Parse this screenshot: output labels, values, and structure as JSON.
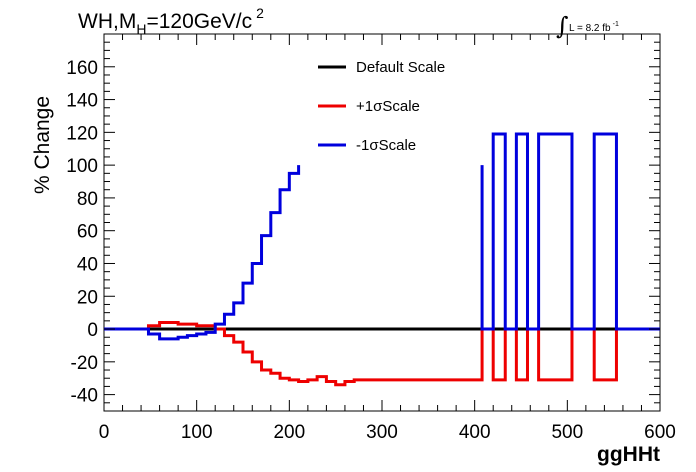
{
  "chart_data": {
    "type": "line",
    "title_main": "WH,M",
    "title_sub": "H",
    "title_rest": "=120GeV/c",
    "title_sup": "2",
    "lumi_main": "L = 8.2 fb",
    "lumi_sup": "-1",
    "xlabel": "ggHHt",
    "ylabel": "% Change",
    "xlim": [
      0,
      600
    ],
    "ylim": [
      -50,
      180
    ],
    "x_ticks": [
      0,
      100,
      200,
      300,
      400,
      500,
      600
    ],
    "y_ticks": [
      -40,
      -20,
      0,
      20,
      40,
      60,
      80,
      100,
      120,
      140,
      160
    ],
    "legend_position": "top-center",
    "grid": false,
    "series": [
      {
        "name": "Default Scale",
        "color": "#000000",
        "points": [
          [
            0,
            0
          ],
          [
            600,
            0
          ]
        ]
      },
      {
        "name": "+1σScale",
        "color": "#ee0000",
        "points": [
          [
            0,
            0
          ],
          [
            48,
            0
          ],
          [
            48,
            2
          ],
          [
            60,
            2
          ],
          [
            60,
            4
          ],
          [
            70,
            4
          ],
          [
            70,
            4
          ],
          [
            80,
            4
          ],
          [
            80,
            3
          ],
          [
            90,
            3
          ],
          [
            90,
            3
          ],
          [
            100,
            3
          ],
          [
            100,
            2
          ],
          [
            110,
            2
          ],
          [
            110,
            2
          ],
          [
            120,
            2
          ],
          [
            120,
            0
          ],
          [
            130,
            0
          ],
          [
            130,
            -4
          ],
          [
            140,
            -4
          ],
          [
            140,
            -8
          ],
          [
            150,
            -8
          ],
          [
            150,
            -14
          ],
          [
            160,
            -14
          ],
          [
            160,
            -20
          ],
          [
            170,
            -20
          ],
          [
            170,
            -25
          ],
          [
            180,
            -25
          ],
          [
            180,
            -27
          ],
          [
            190,
            -27
          ],
          [
            190,
            -30
          ],
          [
            200,
            -30
          ],
          [
            200,
            -31
          ],
          [
            210,
            -31
          ],
          [
            210,
            -32
          ],
          [
            220,
            -32
          ],
          [
            220,
            -31
          ],
          [
            230,
            -31
          ],
          [
            230,
            -29
          ],
          [
            240,
            -29
          ],
          [
            240,
            -32
          ],
          [
            250,
            -32
          ],
          [
            250,
            -34
          ],
          [
            260,
            -34
          ],
          [
            260,
            -32
          ],
          [
            270,
            -32
          ],
          [
            270,
            -31
          ],
          [
            408,
            -31
          ],
          [
            408,
            0
          ],
          [
            420,
            0
          ],
          [
            420,
            -31
          ],
          [
            433,
            -31
          ],
          [
            433,
            0
          ],
          [
            445,
            0
          ],
          [
            445,
            -31
          ],
          [
            457,
            -31
          ],
          [
            457,
            0
          ],
          [
            469,
            0
          ],
          [
            469,
            -31
          ],
          [
            505,
            -31
          ],
          [
            505,
            0
          ],
          [
            529,
            0
          ],
          [
            529,
            -31
          ],
          [
            553,
            -31
          ],
          [
            553,
            0
          ],
          [
            600,
            0
          ]
        ]
      },
      {
        "name": "-1σScale",
        "color": "#0000dd",
        "points": [
          [
            0,
            0
          ],
          [
            48,
            0
          ],
          [
            48,
            -3
          ],
          [
            60,
            -3
          ],
          [
            60,
            -6
          ],
          [
            70,
            -6
          ],
          [
            70,
            -6
          ],
          [
            80,
            -6
          ],
          [
            80,
            -5
          ],
          [
            90,
            -5
          ],
          [
            90,
            -4
          ],
          [
            100,
            -4
          ],
          [
            100,
            -3
          ],
          [
            110,
            -3
          ],
          [
            110,
            -2
          ],
          [
            120,
            -2
          ],
          [
            120,
            3
          ],
          [
            130,
            3
          ],
          [
            130,
            9
          ],
          [
            140,
            9
          ],
          [
            140,
            16
          ],
          [
            150,
            16
          ],
          [
            150,
            28
          ],
          [
            160,
            28
          ],
          [
            160,
            40
          ],
          [
            170,
            40
          ],
          [
            170,
            57
          ],
          [
            180,
            57
          ],
          [
            180,
            71
          ],
          [
            190,
            71
          ],
          [
            190,
            85
          ],
          [
            200,
            85
          ],
          [
            200,
            95
          ],
          [
            210,
            95
          ],
          [
            210,
            100
          ],
          null,
          [
            408,
            100
          ],
          [
            408,
            0
          ],
          [
            420,
            0
          ],
          [
            420,
            119
          ],
          [
            433,
            119
          ],
          [
            433,
            0
          ],
          [
            445,
            0
          ],
          [
            445,
            119
          ],
          [
            457,
            119
          ],
          [
            457,
            0
          ],
          [
            469,
            0
          ],
          [
            469,
            119
          ],
          [
            505,
            119
          ],
          [
            505,
            0
          ],
          [
            529,
            0
          ],
          [
            529,
            119
          ],
          [
            553,
            119
          ],
          [
            553,
            0
          ],
          [
            600,
            0
          ]
        ]
      }
    ]
  }
}
